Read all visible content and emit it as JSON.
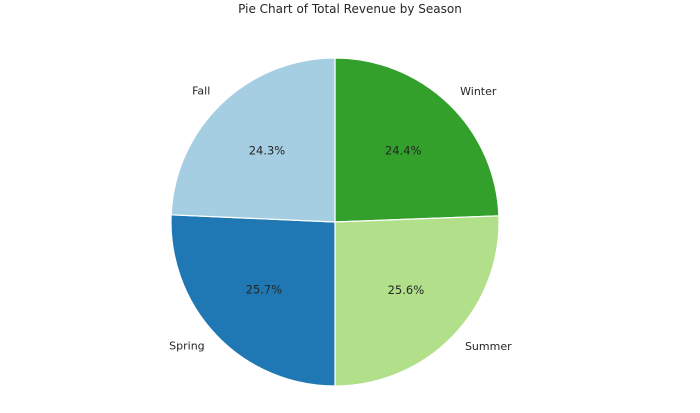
{
  "chart_data": {
    "type": "pie",
    "title": "Pie Chart of Total Revenue by Season",
    "slices": [
      {
        "label": "Winter",
        "value": 24.4,
        "pct_label": "24.4%",
        "color": "#33a02c"
      },
      {
        "label": "Summer",
        "value": 25.6,
        "pct_label": "25.6%",
        "color": "#b2df8a"
      },
      {
        "label": "Spring",
        "value": 25.7,
        "pct_label": "25.7%",
        "color": "#1f78b4"
      },
      {
        "label": "Fall",
        "value": 24.3,
        "pct_label": "24.3%",
        "color": "#a6cee3"
      }
    ],
    "start_angle_deg": 90,
    "direction": "clockwise",
    "legend": "none"
  }
}
